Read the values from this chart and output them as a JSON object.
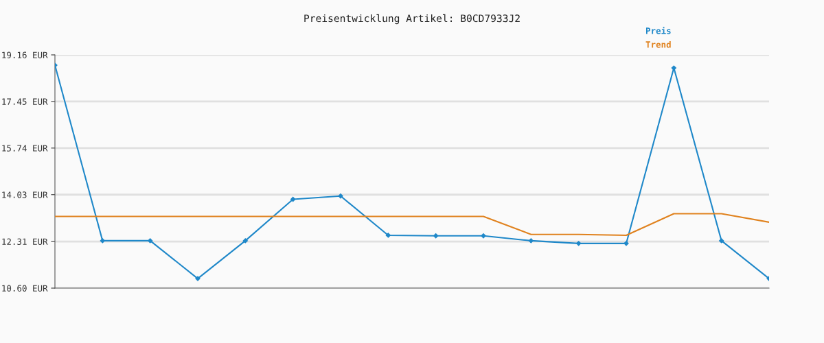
{
  "chart_data": {
    "type": "line",
    "title": "Preisentwicklung Artikel: B0CD7933J2",
    "categories": [
      null,
      null,
      null,
      null,
      null,
      null,
      null,
      null,
      null,
      null,
      null,
      null,
      null,
      null,
      null,
      null
    ],
    "series": [
      {
        "name": "Preis",
        "color": "#1f88c9",
        "marker": "diamond",
        "values": [
          18.78,
          12.34,
          12.34,
          10.95,
          12.34,
          13.86,
          13.98,
          12.54,
          12.52,
          12.52,
          12.34,
          12.24,
          12.24,
          18.68,
          12.34,
          10.95
        ]
      },
      {
        "name": "Trend",
        "color": "#e0821e",
        "marker": "none",
        "values": [
          13.23,
          13.23,
          13.23,
          13.23,
          13.23,
          13.23,
          13.23,
          13.23,
          13.23,
          13.23,
          12.57,
          12.57,
          12.54,
          13.33,
          13.33,
          13.02
        ]
      }
    ],
    "ylim": [
      10.6,
      19.16
    ],
    "yticks": [
      {
        "value": 10.6,
        "label": "10.60 EUR"
      },
      {
        "value": 12.31,
        "label": "12.31 EUR"
      },
      {
        "value": 14.03,
        "label": "14.03 EUR"
      },
      {
        "value": 15.74,
        "label": "15.74 EUR"
      },
      {
        "value": 17.45,
        "label": "17.45 EUR"
      },
      {
        "value": 19.16,
        "label": "19.16 EUR"
      }
    ],
    "grid": "y",
    "legend": "top right",
    "line_style": "solid"
  }
}
